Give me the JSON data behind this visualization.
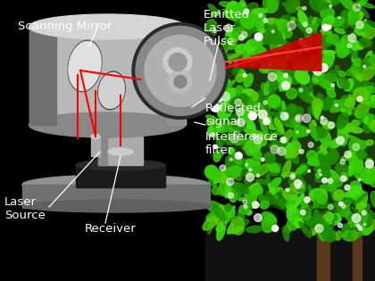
{
  "background_color": "#000000",
  "labels": {
    "scanning_mirror": "Scanning Mirror",
    "emitted_laser": "Emitted\nLaser\nPulse",
    "reflected_signal": "Reflected\nsignal",
    "interference_filter": "Interference\nfilter",
    "laser_source": "Laser\nSource",
    "receiver": "Receiver"
  },
  "label_color": "#ffffff",
  "label_fontsize": 9.5,
  "laser_color": "#ff0000",
  "cyl_body_color": "#b0b0b0",
  "cyl_dark_color": "#707070",
  "cyl_top_color": "#d0d0d0",
  "cyl_left_color": "#888888",
  "base_disk_color": "#909090",
  "base_disk_dark": "#606060",
  "stem_color": "#aaaaaa",
  "pedestal_color": "#999999",
  "mirror_white": "#e8e8e8",
  "mirror_dark": "#555555",
  "front_ring_dark": "#333333",
  "front_ring_mid": "#888888",
  "front_lens_light": "#cccccc",
  "black_box_color": "#1a1a1a",
  "laser_source_box": "#aaaaaa",
  "small_disk_color": "#bbbbbb"
}
